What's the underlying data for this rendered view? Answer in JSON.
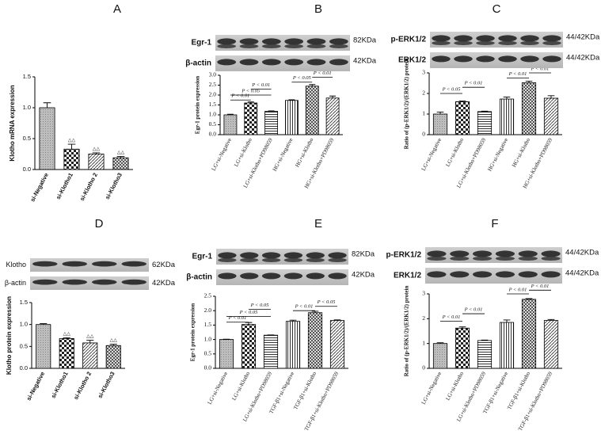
{
  "chart_data": [
    {
      "type": "bar",
      "panel": "A",
      "ylabel": "Klotho mRNA expression",
      "categories": [
        "si-Negative",
        "si-Klotho1",
        "si-Klotho 2",
        "si-Klotho3"
      ],
      "values": [
        1.0,
        0.33,
        0.25,
        0.19
      ],
      "errors": [
        0.08,
        0.08,
        0.02,
        0.02
      ],
      "ylim": [
        0,
        1.5
      ],
      "yticks": [
        {
          "value": 0,
          "label": "0.0"
        },
        {
          "value": 0.5,
          "label": "0.5"
        },
        {
          "value": 1,
          "label": "1.0"
        },
        {
          "value": 1.5,
          "label": "1.5"
        }
      ],
      "annotations": [
        "△△",
        "△△",
        "△△"
      ],
      "blots": []
    },
    {
      "type": "bar",
      "panel": "B",
      "ylabel": "Egr-1 protein expression",
      "categories": [
        "LG+si-Negative",
        "LG+si-Klotho",
        "LG+si-Klotho+PD98059",
        "HG+si-Negative",
        "HG+si-Klotho",
        "HG+si-Klotho+PD98059"
      ],
      "values": [
        1.0,
        1.6,
        1.18,
        1.73,
        2.45,
        1.85
      ],
      "errors": [
        0.03,
        0.05,
        0.02,
        0.03,
        0.08,
        0.1
      ],
      "ylim": [
        0,
        3
      ],
      "yticks": [
        {
          "value": 0,
          "label": "0.0"
        },
        {
          "value": 0.5,
          "label": "0.5"
        },
        {
          "value": 1,
          "label": "1.0"
        },
        {
          "value": 1.5,
          "label": "1.5"
        },
        {
          "value": 2,
          "label": "2.0"
        },
        {
          "value": 2.5,
          "label": "2.5"
        },
        {
          "value": 3,
          "label": "3.0"
        }
      ],
      "annotations": [
        "P < 0.01",
        "P < 0.05",
        "P < 0.01",
        "P < 0.05",
        "P < 0.01"
      ],
      "blots": [
        {
          "label": "Egr-1",
          "size": "82KDa"
        },
        {
          "label": "β-actin",
          "size": "42KDa"
        }
      ]
    },
    {
      "type": "bar",
      "panel": "C",
      "ylabel": "Ratio of (p-ERK1/2)/(ERK1/2) protein",
      "categories": [
        "LG+si-Negative",
        "LG+si-Klotho",
        "LG+si-Klotho+PD98059",
        "HG+si-Negative",
        "HG+si-Klotho",
        "HG+si-Klotho+PD98059"
      ],
      "values": [
        1.0,
        1.6,
        1.12,
        1.73,
        2.52,
        1.77
      ],
      "errors": [
        0.1,
        0.03,
        0.02,
        0.1,
        0.08,
        0.12
      ],
      "ylim": [
        0,
        3
      ],
      "yticks": [
        0,
        1,
        2,
        3
      ],
      "annotations": [
        "P < 0.05",
        "P < 0.01",
        "P < 0.01",
        "P < 0.01"
      ],
      "blots": [
        {
          "label": "p-ERK1/2",
          "size": "44/42KDa"
        },
        {
          "label": "ERK1/2",
          "size": "44/42KDa"
        }
      ]
    },
    {
      "type": "bar",
      "panel": "D",
      "ylabel": "Klotho protein expression",
      "categories": [
        "si-Negative",
        "si-Klotho1",
        "si-Klotho 2",
        "si-Klotho3"
      ],
      "values": [
        1.0,
        0.68,
        0.58,
        0.52
      ],
      "errors": [
        0.02,
        0.02,
        0.06,
        0.03
      ],
      "ylim": [
        0,
        1.5
      ],
      "yticks": [
        {
          "value": 0,
          "label": "0.0"
        },
        {
          "value": 0.5,
          "label": "0.5"
        },
        {
          "value": 1,
          "label": "1.0"
        },
        {
          "value": 1.5,
          "label": "1.5"
        }
      ],
      "annotations": [
        "△△",
        "△△",
        "△△"
      ],
      "blots": [
        {
          "label": "Klotho",
          "size": "62KDa"
        },
        {
          "label": "β-actin",
          "size": "42KDa"
        }
      ]
    },
    {
      "type": "bar",
      "panel": "E",
      "ylabel": "Egr-1 protein expression",
      "categories": [
        "LG+si-Negative",
        "LG+si-Klotho",
        "LG+si-Klotho+PD98059",
        "TGF-β1+si-Negative",
        "TGF-β1+si-Klotho",
        "TGF-β1+si-Klotho+PD98059"
      ],
      "values": [
        1.0,
        1.52,
        1.15,
        1.63,
        1.93,
        1.66
      ],
      "errors": [
        0.01,
        0.07,
        0.01,
        0.04,
        0.05,
        0.02
      ],
      "ylim": [
        0,
        2.5
      ],
      "yticks": [
        {
          "value": 0,
          "label": "0.0"
        },
        {
          "value": 0.5,
          "label": "0.5"
        },
        {
          "value": 1,
          "label": "1.0"
        },
        {
          "value": 1.5,
          "label": "1.5"
        },
        {
          "value": 2,
          "label": "2.0"
        },
        {
          "value": 2.5,
          "label": "2.5"
        }
      ],
      "annotations": [
        "P < 0.01",
        "P < 0.05",
        "P < 0.05",
        "P < 0.01",
        "P < 0.05"
      ],
      "blots": [
        {
          "label": "Egr-1",
          "size": "82KDa"
        },
        {
          "label": "β-actin",
          "size": "42KDa"
        }
      ]
    },
    {
      "type": "bar",
      "panel": "F",
      "ylabel": "Ratio of (p-ERK1/2)/(ERK1/2) protein",
      "categories": [
        "LG+si-Negative",
        "LG+si-Klotho",
        "LG+si-Klotho+PD98059",
        "TGF-β1+si-Negative",
        "TGF-β1+si-Klotho",
        "TGF-β1+si-Klotho+PD98059"
      ],
      "values": [
        1.0,
        1.62,
        1.12,
        1.85,
        2.78,
        1.93
      ],
      "errors": [
        0.03,
        0.05,
        0.02,
        0.1,
        0.03,
        0.04
      ],
      "ylim": [
        0,
        3
      ],
      "yticks": [
        0,
        1,
        2,
        3
      ],
      "annotations": [
        "P < 0.01",
        "P < 0.01",
        "P < 0.01",
        "P < 0.01"
      ],
      "blots": [
        {
          "label": "p-ERK1/2",
          "size": "44/42KDa"
        },
        {
          "label": "ERK1/2",
          "size": "44/42KDa"
        }
      ]
    }
  ]
}
